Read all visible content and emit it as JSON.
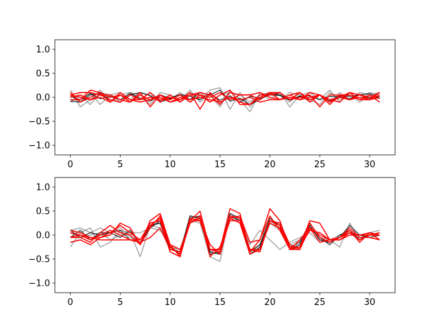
{
  "chart_data": [
    {
      "type": "line",
      "xlim": [
        -1.55,
        32.55
      ],
      "ylim": [
        -1.2,
        1.2
      ],
      "xticks": [
        0,
        5,
        10,
        15,
        20,
        25,
        30
      ],
      "yticks": [
        -1.0,
        -0.5,
        0.0,
        0.5,
        1.0
      ],
      "xtick_labels": [
        "0",
        "5",
        "10",
        "15",
        "20",
        "25",
        "30"
      ],
      "ytick_labels": [
        "−1.0",
        "−0.5",
        "0.0",
        "0.5",
        "1.0"
      ],
      "x": [
        0,
        1,
        2,
        3,
        4,
        5,
        6,
        7,
        8,
        9,
        10,
        11,
        12,
        13,
        14,
        15,
        16,
        17,
        18,
        19,
        20,
        21,
        22,
        23,
        24,
        25,
        26,
        27,
        28,
        29,
        30,
        31
      ],
      "series": [
        {
          "color": "#808080",
          "values": [
            0.15,
            -0.2,
            -0.05,
            0.15,
            -0.1,
            0.05,
            0.1,
            -0.05,
            0.1,
            -0.05,
            0.05,
            -0.1,
            0.1,
            -0.05,
            0.15,
            0.2,
            -0.25,
            0.1,
            -0.2,
            0.05,
            0.1,
            -0.05,
            0.1,
            0.05,
            -0.1,
            0.05,
            -0.15,
            0.1,
            -0.05,
            0.1,
            0.05,
            -0.1
          ]
        },
        {
          "color": "#808080",
          "values": [
            -0.1,
            0.05,
            -0.15,
            0.1,
            0.05,
            -0.1,
            0.1,
            0.05,
            -0.15,
            0.1,
            0.05,
            -0.05,
            0.15,
            -0.1,
            0.05,
            -0.2,
            0.15,
            -0.05,
            -0.3,
            0.1,
            -0.05,
            0.1,
            -0.2,
            0.05,
            0.1,
            -0.05,
            0.15,
            -0.1,
            0.1,
            -0.05,
            0.1,
            0.05
          ]
        },
        {
          "color": "#808080",
          "values": [
            0.05,
            -0.1,
            0.1,
            -0.15,
            0.05,
            0.1,
            -0.05,
            0.1,
            0.05,
            -0.1,
            -0.05,
            0.1,
            -0.05,
            0.1,
            -0.1,
            0.05,
            0.1,
            0.05,
            -0.1,
            0.05,
            0.1,
            0.05,
            -0.1,
            0.1,
            -0.05,
            -0.15,
            0.1,
            -0.05,
            0.05,
            -0.1,
            0.05,
            0.1
          ]
        },
        {
          "color": "#000000",
          "values": [
            -0.08,
            -0.1,
            0.05,
            0.08,
            -0.05,
            -0.1,
            0.05,
            0.1,
            0.03,
            -0.08,
            -0.03,
            0.05,
            -0.05,
            0.1,
            0.05,
            0.15,
            -0.08,
            -0.02,
            -0.15,
            -0.05,
            0.08,
            0.05,
            -0.05,
            0.02,
            -0.05,
            0.05,
            -0.08,
            0.03,
            0.02,
            0.05,
            0.08,
            -0.03
          ]
        },
        {
          "color": "#000000",
          "values": [
            0.02,
            -0.05,
            0.08,
            -0.03,
            0.02,
            -0.05,
            0.08,
            -0.02,
            -0.08,
            0.05,
            -0.02,
            0.06,
            0.02,
            -0.05,
            0.08,
            -0.06,
            0.03,
            -0.1,
            0.02,
            -0.02,
            0.05,
            0.04,
            -0.06,
            0.02,
            0.03,
            -0.05,
            0.02,
            0.01,
            -0.03,
            0.06,
            -0.02,
            0.02
          ]
        },
        {
          "color": "#ff0000",
          "values": [
            0.05,
            0.1,
            0.1,
            0.05,
            -0.05,
            -0.1,
            0.05,
            -0.05,
            0.0,
            -0.05,
            0.0,
            -0.05,
            0.05,
            0.1,
            0.05,
            -0.15,
            0.1,
            0.05,
            0.05,
            -0.05,
            0.1,
            0.1,
            -0.05,
            0.0,
            0.05,
            -0.2,
            0.05,
            0.05,
            -0.05,
            0.05,
            0.0,
            0.1
          ]
        },
        {
          "color": "#ff0000",
          "values": [
            -0.05,
            -0.05,
            0.15,
            0.1,
            0.0,
            0.05,
            -0.1,
            0.1,
            -0.2,
            0.05,
            -0.1,
            -0.05,
            0.1,
            -0.25,
            0.1,
            -0.1,
            0.0,
            -0.1,
            -0.15,
            0.05,
            0.05,
            0.1,
            -0.05,
            0.1,
            -0.05,
            0.05,
            -0.15,
            0.05,
            0.05,
            -0.05,
            -0.05,
            0.05
          ]
        },
        {
          "color": "#ff0000",
          "values": [
            0.1,
            -0.1,
            0.0,
            0.1,
            -0.1,
            0.1,
            -0.05,
            -0.05,
            0.1,
            -0.1,
            0.05,
            -0.1,
            0.05,
            0.05,
            -0.1,
            0.05,
            0.15,
            -0.15,
            -0.15,
            0.0,
            0.1,
            -0.05,
            0.05,
            0.1,
            -0.1,
            0.05,
            -0.05,
            -0.1,
            0.1,
            0.05,
            -0.05,
            0.1
          ]
        },
        {
          "color": "#ff0000",
          "values": [
            0.0,
            0.05,
            -0.05,
            0.05,
            0.05,
            -0.05,
            -0.1,
            0.05,
            -0.05,
            0.05,
            -0.05,
            0.05,
            -0.1,
            0.05,
            0.0,
            0.1,
            -0.05,
            0.05,
            0.05,
            0.1,
            0.0,
            -0.05,
            0.05,
            -0.05,
            0.1,
            0.05,
            -0.1,
            0.0,
            0.1,
            -0.05,
            0.05,
            -0.1
          ]
        },
        {
          "color": "#ff0000",
          "values": [
            0.05,
            0.0,
            -0.05,
            0.0,
            -0.1,
            0.05,
            -0.05,
            -0.1,
            -0.05,
            0.0,
            -0.1,
            0.0,
            -0.05,
            0.0,
            -0.05,
            -0.1,
            0.0,
            -0.05,
            0.0,
            -0.1,
            -0.05,
            -0.05,
            0.0,
            -0.05,
            0.0,
            0.05,
            -0.05,
            0.0,
            -0.05,
            0.0,
            -0.05,
            0.0
          ]
        }
      ]
    },
    {
      "type": "line",
      "xlim": [
        -1.55,
        32.55
      ],
      "ylim": [
        -1.2,
        1.2
      ],
      "xticks": [
        0,
        5,
        10,
        15,
        20,
        25,
        30
      ],
      "yticks": [
        -1.0,
        -0.5,
        0.0,
        0.5,
        1.0
      ],
      "xtick_labels": [
        "0",
        "5",
        "10",
        "15",
        "20",
        "25",
        "30"
      ],
      "ytick_labels": [
        "−1.0",
        "−0.5",
        "0.0",
        "0.5",
        "1.0"
      ],
      "x": [
        0,
        1,
        2,
        3,
        4,
        5,
        6,
        7,
        8,
        9,
        10,
        11,
        12,
        13,
        14,
        15,
        16,
        17,
        18,
        19,
        20,
        21,
        22,
        23,
        24,
        25,
        26,
        27,
        28,
        29,
        30,
        31
      ],
      "series": [
        {
          "color": "#808080",
          "values": [
            -0.25,
            0.05,
            0.15,
            -0.25,
            -0.15,
            0.1,
            0.05,
            -0.45,
            0.2,
            0.25,
            -0.25,
            -0.3,
            0.3,
            0.25,
            -0.45,
            -0.55,
            0.45,
            0.3,
            -0.2,
            0.1,
            -0.1,
            -0.3,
            -0.15,
            -0.05,
            0.05,
            -0.15,
            -0.1,
            -0.25,
            0.25,
            -0.1,
            0.05,
            0.1
          ]
        },
        {
          "color": "#808080",
          "values": [
            0.1,
            0.15,
            0.05,
            0.15,
            0.05,
            0.15,
            -0.05,
            -0.1,
            0.2,
            0.15,
            -0.25,
            -0.35,
            0.4,
            0.35,
            -0.4,
            -0.35,
            0.4,
            0.35,
            -0.4,
            -0.25,
            0.3,
            0.15,
            -0.25,
            -0.2,
            0.2,
            -0.1,
            -0.15,
            -0.05,
            0.1,
            -0.05,
            0.0,
            0.05
          ]
        },
        {
          "color": "#808080",
          "values": [
            0.05,
            -0.05,
            0.0,
            0.05,
            -0.1,
            0.0,
            0.05,
            0.05,
            0.15,
            0.1,
            -0.2,
            -0.3,
            0.35,
            0.3,
            -0.35,
            -0.3,
            0.35,
            0.3,
            -0.35,
            -0.2,
            0.25,
            0.1,
            -0.2,
            -0.1,
            0.15,
            -0.05,
            -0.1,
            0.0,
            0.05,
            -0.1,
            0.05,
            0.0
          ]
        },
        {
          "color": "#000000",
          "values": [
            0.1,
            -0.05,
            0.05,
            0.0,
            0.05,
            0.1,
            -0.1,
            -0.15,
            0.15,
            0.3,
            -0.25,
            -0.4,
            0.4,
            0.35,
            -0.4,
            -0.35,
            0.45,
            0.35,
            -0.35,
            -0.2,
            0.35,
            0.2,
            -0.3,
            -0.2,
            0.2,
            -0.1,
            -0.15,
            -0.05,
            0.2,
            0.0,
            -0.05,
            0.0
          ]
        },
        {
          "color": "#000000",
          "values": [
            -0.05,
            0.1,
            -0.1,
            0.05,
            0.05,
            -0.05,
            0.1,
            -0.2,
            0.2,
            0.25,
            -0.3,
            -0.35,
            0.35,
            0.4,
            -0.35,
            -0.4,
            0.4,
            0.3,
            -0.4,
            -0.25,
            0.3,
            0.2,
            -0.25,
            -0.15,
            0.25,
            -0.05,
            -0.2,
            0.0,
            0.1,
            -0.1,
            0.0,
            0.05
          ]
        },
        {
          "color": "#ff0000",
          "values": [
            -0.15,
            -0.1,
            -0.2,
            -0.05,
            0.0,
            0.25,
            0.15,
            -0.2,
            0.15,
            0.4,
            -0.2,
            -0.45,
            0.3,
            0.5,
            -0.3,
            -0.3,
            0.55,
            0.45,
            -0.35,
            -0.1,
            0.55,
            0.3,
            -0.3,
            -0.25,
            0.3,
            0.25,
            -0.1,
            -0.1,
            0.05,
            0.0,
            0.05,
            0.0
          ]
        },
        {
          "color": "#ff0000",
          "values": [
            -0.05,
            -0.05,
            -0.15,
            0.05,
            0.2,
            0.05,
            0.0,
            -0.2,
            0.3,
            0.45,
            -0.2,
            -0.3,
            0.25,
            0.4,
            -0.45,
            -0.25,
            0.35,
            0.4,
            -0.15,
            -0.1,
            0.4,
            0.1,
            -0.3,
            -0.1,
            0.15,
            -0.15,
            -0.1,
            -0.05,
            0.1,
            -0.15,
            0.05,
            -0.1
          ]
        },
        {
          "color": "#ff0000",
          "values": [
            0.05,
            0.0,
            -0.1,
            0.0,
            0.1,
            0.0,
            -0.1,
            -0.1,
            0.25,
            0.3,
            -0.35,
            -0.45,
            0.35,
            0.3,
            -0.3,
            -0.35,
            0.4,
            0.35,
            -0.3,
            -0.35,
            0.3,
            0.25,
            -0.2,
            -0.3,
            0.25,
            -0.05,
            -0.15,
            -0.05,
            0.05,
            -0.1,
            0.0,
            0.05
          ]
        },
        {
          "color": "#ff0000",
          "values": [
            0.1,
            0.05,
            -0.05,
            -0.05,
            0.05,
            0.2,
            0.05,
            -0.1,
            0.2,
            0.35,
            -0.25,
            -0.4,
            0.25,
            0.35,
            -0.2,
            -0.4,
            0.35,
            0.25,
            -0.4,
            -0.3,
            0.25,
            0.15,
            -0.25,
            -0.25,
            0.1,
            0.05,
            -0.1,
            -0.05,
            0.15,
            -0.05,
            -0.05,
            -0.1
          ]
        },
        {
          "color": "#ff0000",
          "values": [
            -0.05,
            0.0,
            -0.05,
            -0.1,
            -0.1,
            -0.1,
            -0.1,
            -0.15,
            -0.05,
            0.15,
            -0.3,
            -0.35,
            0.3,
            0.3,
            -0.3,
            -0.3,
            0.3,
            0.3,
            -0.3,
            -0.3,
            0.3,
            0.2,
            -0.3,
            -0.3,
            0.15,
            0.0,
            -0.1,
            -0.1,
            0.0,
            0.0,
            0.0,
            0.0
          ]
        }
      ]
    }
  ]
}
